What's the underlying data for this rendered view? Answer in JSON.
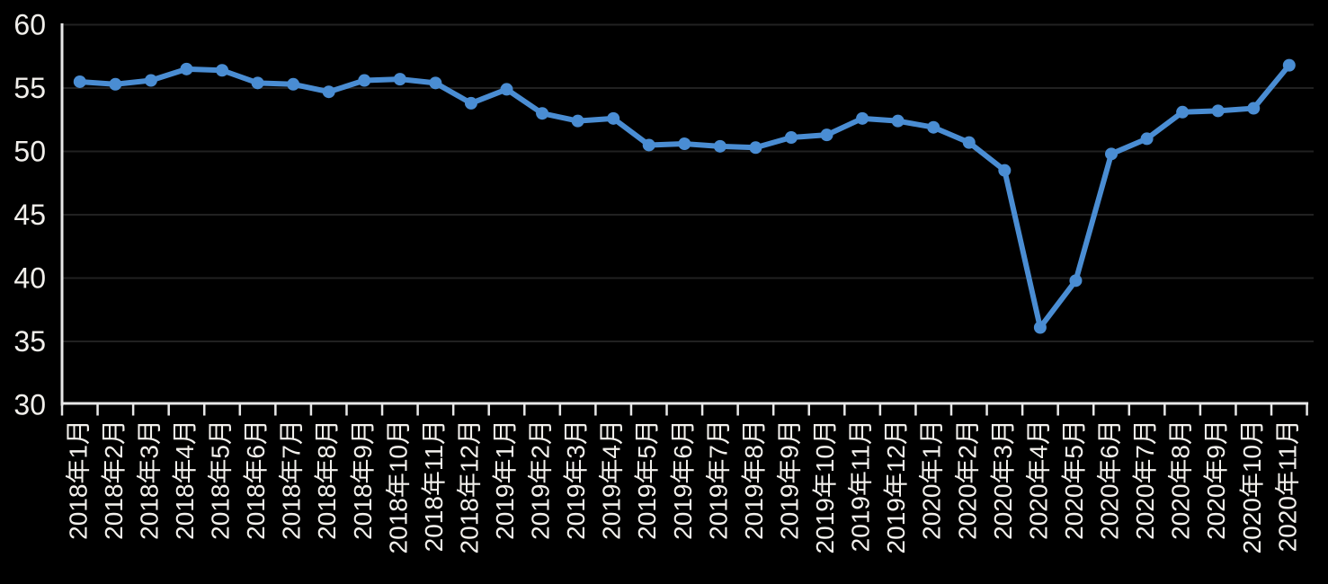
{
  "chart_data": {
    "type": "line",
    "title": "",
    "xlabel": "",
    "ylabel": "",
    "categories": [
      "2018年1月",
      "2018年2月",
      "2018年3月",
      "2018年4月",
      "2018年5月",
      "2018年6月",
      "2018年7月",
      "2018年8月",
      "2018年9月",
      "2018年10月",
      "2018年11月",
      "2018年12月",
      "2019年1月",
      "2019年2月",
      "2019年3月",
      "2019年4月",
      "2019年5月",
      "2019年6月",
      "2019年7月",
      "2019年8月",
      "2019年9月",
      "2019年10月",
      "2019年11月",
      "2019年12月",
      "2020年1月",
      "2020年2月",
      "2020年3月",
      "2020年4月",
      "2020年5月",
      "2020年6月",
      "2020年7月",
      "2020年8月",
      "2020年9月",
      "2020年10月",
      "2020年11月"
    ],
    "series": [
      {
        "values": [
          55.5,
          55.3,
          55.6,
          56.5,
          56.4,
          55.4,
          55.3,
          54.7,
          55.6,
          55.7,
          55.4,
          53.8,
          54.9,
          53.0,
          52.4,
          52.6,
          50.5,
          50.6,
          50.4,
          50.3,
          51.1,
          51.3,
          52.6,
          52.4,
          51.9,
          50.7,
          48.5,
          36.1,
          39.8,
          49.8,
          51.0,
          53.1,
          53.2,
          53.4,
          56.8
        ]
      }
    ],
    "ylim": [
      30,
      60
    ],
    "yticks": [
      30,
      35,
      40,
      45,
      50,
      55,
      60
    ],
    "grid": true,
    "legend": false,
    "marker": "circle"
  },
  "style": {
    "background_color": "#000000",
    "line_color": "#4a8dd3",
    "marker_color": "#4a8dd3",
    "gridline_color": "#212121",
    "axis_color": "#e8e8e8",
    "label_color": "#f2f0ec"
  }
}
